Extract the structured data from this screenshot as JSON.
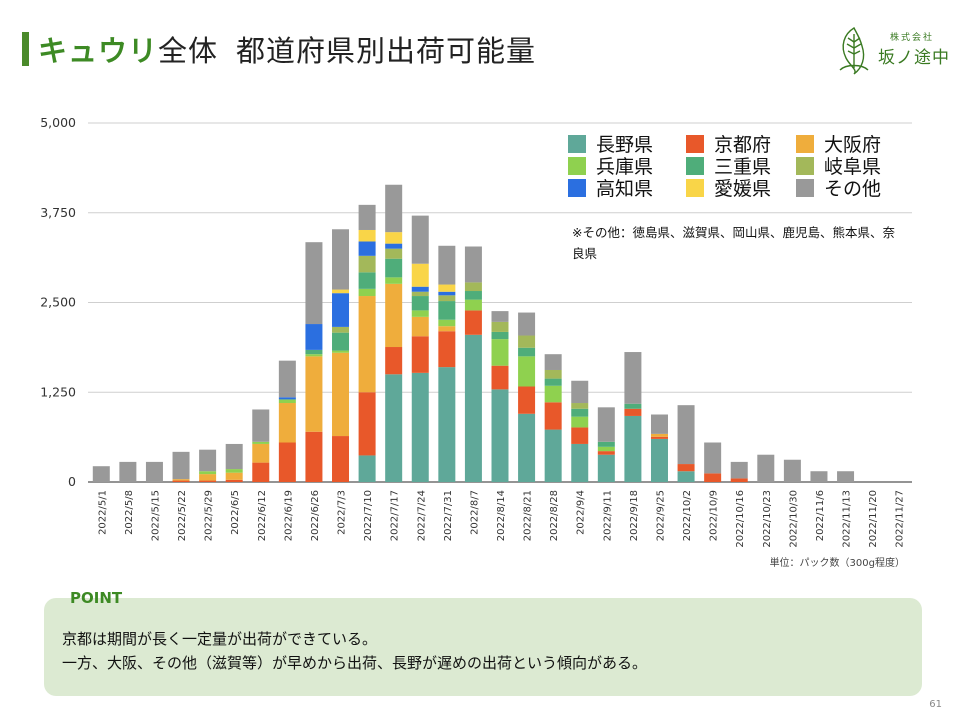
{
  "title": {
    "accent": "キュウリ",
    "rest": "全体",
    "subtitle": "都道府県別出荷可能量"
  },
  "logo": {
    "small": "株式会社",
    "name": "坂ノ途中"
  },
  "point": {
    "label": "POINT",
    "line1": "京都は期間が長く一定量が出荷ができている。",
    "line2": "一方、大阪、その他（滋賀等）が早めから出荷、長野が遅めの出荷という傾向がある。"
  },
  "page_number": "61",
  "chart_data": {
    "type": "bar",
    "stacked": true,
    "categories": [
      "2022/5/1",
      "2022/5/8",
      "2022/5/15",
      "2022/5/22",
      "2022/5/29",
      "2022/6/5",
      "2022/6/12",
      "2022/6/19",
      "2022/6/26",
      "2022/7/3",
      "2022/7/10",
      "2022/7/17",
      "2022/7/24",
      "2022/7/31",
      "2022/8/7",
      "2022/8/14",
      "2022/8/21",
      "2022/8/28",
      "2022/9/4",
      "2022/9/11",
      "2022/9/18",
      "2022/9/25",
      "2022/10/2",
      "2022/10/9",
      "2022/10/16",
      "2022/10/23",
      "2022/10/30",
      "2022/11/6",
      "2022/11/13",
      "2022/11/20",
      "2022/11/27"
    ],
    "ylim": [
      0,
      5000
    ],
    "yticks": [
      0,
      1250,
      2500,
      3750,
      5000
    ],
    "ytick_labels": [
      "0",
      "1,250",
      "2,500",
      "3,750",
      "5,000"
    ],
    "grid": true,
    "legend_position": "top-right",
    "unit_note": "単位：パック数（300g程度）",
    "other_note": "※その他：徳島県、滋賀県、岡山県、鹿児島、熊本県、奈良県",
    "series": [
      {
        "name": "長野県",
        "color": "#5fa899",
        "values": [
          0,
          0,
          0,
          0,
          0,
          0,
          0,
          0,
          0,
          0,
          370,
          1500,
          1520,
          1600,
          2050,
          1290,
          950,
          730,
          530,
          380,
          920,
          600,
          150,
          0,
          0,
          0,
          0,
          0,
          0,
          0,
          0
        ]
      },
      {
        "name": "京都府",
        "color": "#e8582a",
        "values": [
          0,
          0,
          0,
          20,
          20,
          30,
          270,
          550,
          700,
          640,
          880,
          380,
          510,
          500,
          340,
          330,
          380,
          380,
          230,
          50,
          100,
          30,
          100,
          120,
          50,
          0,
          0,
          0,
          0,
          0,
          0
        ]
      },
      {
        "name": "大阪府",
        "color": "#efad3c",
        "values": [
          0,
          0,
          0,
          20,
          90,
          100,
          260,
          550,
          1050,
          1160,
          1340,
          880,
          270,
          70,
          0,
          0,
          0,
          0,
          0,
          0,
          0,
          40,
          0,
          0,
          0,
          0,
          0,
          0,
          0,
          0,
          0
        ]
      },
      {
        "name": "兵庫県",
        "color": "#8fd14f",
        "values": [
          0,
          0,
          0,
          0,
          40,
          50,
          30,
          50,
          30,
          30,
          100,
          90,
          90,
          90,
          150,
          370,
          420,
          230,
          150,
          60,
          0,
          0,
          0,
          0,
          0,
          0,
          0,
          0,
          0,
          0,
          0
        ]
      },
      {
        "name": "三重県",
        "color": "#4fad7a",
        "values": [
          0,
          0,
          0,
          0,
          0,
          0,
          0,
          0,
          60,
          250,
          230,
          260,
          200,
          260,
          120,
          100,
          120,
          100,
          110,
          70,
          70,
          0,
          0,
          0,
          0,
          0,
          0,
          0,
          0,
          0,
          0
        ]
      },
      {
        "name": "岐阜県",
        "color": "#a3b85a",
        "values": [
          0,
          0,
          0,
          0,
          0,
          0,
          0,
          0,
          0,
          80,
          230,
          140,
          60,
          80,
          120,
          140,
          170,
          120,
          80,
          0,
          0,
          0,
          0,
          0,
          0,
          0,
          0,
          0,
          0,
          0,
          0
        ]
      },
      {
        "name": "高知県",
        "color": "#2b6fe0",
        "values": [
          0,
          0,
          0,
          0,
          0,
          0,
          0,
          30,
          360,
          470,
          200,
          70,
          70,
          50,
          0,
          0,
          0,
          0,
          0,
          0,
          0,
          0,
          0,
          0,
          0,
          0,
          0,
          0,
          0,
          0,
          0
        ]
      },
      {
        "name": "愛媛県",
        "color": "#f9d548",
        "values": [
          0,
          0,
          0,
          0,
          0,
          0,
          0,
          0,
          0,
          50,
          160,
          160,
          320,
          100,
          0,
          0,
          0,
          0,
          0,
          0,
          0,
          0,
          0,
          0,
          0,
          0,
          0,
          0,
          0,
          0,
          0
        ]
      },
      {
        "name": "その他",
        "color": "#999999",
        "values": [
          220,
          280,
          280,
          380,
          300,
          350,
          450,
          510,
          1140,
          840,
          350,
          660,
          670,
          540,
          500,
          150,
          320,
          220,
          310,
          480,
          720,
          270,
          820,
          430,
          230,
          380,
          310,
          150,
          150,
          0,
          0
        ]
      }
    ]
  }
}
